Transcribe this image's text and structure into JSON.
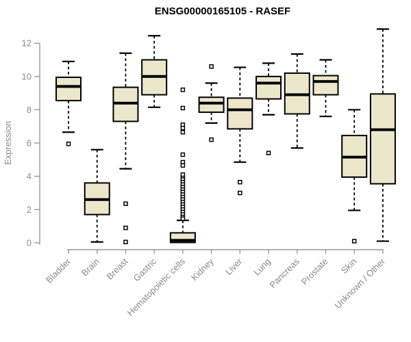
{
  "title": "ENSG00000165105 - RASEF",
  "chart_data": {
    "type": "boxplot",
    "title": "ENSG00000165105 - RASEF",
    "xlabel": "",
    "ylabel": "Expression",
    "ylim": [
      0,
      13
    ],
    "yticks": [
      0,
      2,
      4,
      6,
      8,
      10,
      12
    ],
    "grid": false,
    "legend": false,
    "categories": [
      "Bladder",
      "Brain",
      "Breast",
      "Gastric",
      "Hematopoietic cells",
      "Kidney",
      "Liver",
      "Lung",
      "Pancreas",
      "Prostate",
      "Skin",
      "Unknown / Other"
    ],
    "series": [
      {
        "category": "Bladder",
        "whisker_low": 6.65,
        "q1": 8.55,
        "median": 9.4,
        "q3": 9.95,
        "whisker_high": 10.9,
        "outliers": [
          5.95
        ]
      },
      {
        "category": "Brain",
        "whisker_low": 0.05,
        "q1": 1.7,
        "median": 2.6,
        "q3": 3.6,
        "whisker_high": 5.6,
        "outliers": []
      },
      {
        "category": "Breast",
        "whisker_low": 4.45,
        "q1": 7.3,
        "median": 8.4,
        "q3": 9.35,
        "whisker_high": 11.4,
        "outliers": [
          2.35,
          0.9,
          0.05
        ]
      },
      {
        "category": "Gastric",
        "whisker_low": 8.15,
        "q1": 8.9,
        "median": 10.0,
        "q3": 11.0,
        "whisker_high": 12.45,
        "outliers": []
      },
      {
        "category": "Hematopoietic cells",
        "whisker_low": 0.02,
        "q1": 0.02,
        "median": 0.15,
        "q3": 0.6,
        "whisker_high": 1.35,
        "outliers": [
          9.2,
          8.1,
          7.1,
          6.9,
          6.65,
          5.3,
          4.85,
          4.65,
          4.1,
          3.9,
          3.8,
          3.65,
          3.5,
          3.35,
          3.2,
          3.05,
          2.9,
          2.75,
          2.6,
          2.45,
          2.3,
          2.15,
          2.0,
          1.85,
          1.7,
          1.55,
          1.45
        ]
      },
      {
        "category": "Kidney",
        "whisker_low": 7.2,
        "q1": 7.85,
        "median": 8.4,
        "q3": 8.75,
        "whisker_high": 9.6,
        "outliers": [
          10.6,
          6.2
        ]
      },
      {
        "category": "Liver",
        "whisker_low": 4.85,
        "q1": 6.85,
        "median": 8.0,
        "q3": 8.7,
        "whisker_high": 10.55,
        "outliers": [
          3.65,
          3.0
        ]
      },
      {
        "category": "Lung",
        "whisker_low": 7.7,
        "q1": 8.65,
        "median": 9.6,
        "q3": 10.0,
        "whisker_high": 10.8,
        "outliers": [
          5.4
        ]
      },
      {
        "category": "Pancreas",
        "whisker_low": 5.7,
        "q1": 7.75,
        "median": 8.9,
        "q3": 10.2,
        "whisker_high": 11.35,
        "outliers": []
      },
      {
        "category": "Prostate",
        "whisker_low": 7.6,
        "q1": 8.9,
        "median": 9.7,
        "q3": 10.05,
        "whisker_high": 11.0,
        "outliers": []
      },
      {
        "category": "Skin",
        "whisker_low": 1.95,
        "q1": 3.95,
        "median": 5.15,
        "q3": 6.45,
        "whisker_high": 8.0,
        "outliers": [
          0.1
        ]
      },
      {
        "category": "Unknown / Other",
        "whisker_low": 0.1,
        "q1": 3.55,
        "median": 6.8,
        "q3": 8.95,
        "whisker_high": 12.85,
        "outliers": []
      }
    ],
    "colors": {
      "box_fill": "#ECE7CB",
      "box_stroke": "#000000",
      "median": "#000000",
      "whisker": "#000000",
      "outlier_stroke": "#000000",
      "outlier_fill": "#FFFFFF",
      "axis_line": "#999999",
      "tick_label": "#8A8A8A",
      "axis_title": "#8A8A8A",
      "title": "#000000",
      "background": "#FFFFFF"
    }
  }
}
